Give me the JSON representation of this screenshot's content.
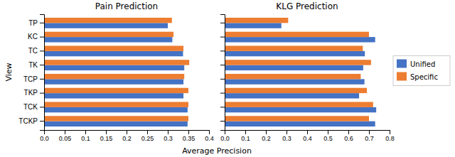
{
  "chart_data": [
    {
      "type": "bar",
      "orientation": "horizontal",
      "title": "Pain Prediction",
      "xlabel": "Average Precision",
      "ylabel": "View",
      "legend": "right",
      "categories": [
        "TP",
        "KC",
        "TC",
        "TK",
        "TCP",
        "TKP",
        "TCK",
        "TCKP"
      ],
      "series": [
        {
          "name": "Unified",
          "color": "#4472C4",
          "values": [
            0.3,
            0.311,
            0.337,
            0.34,
            0.338,
            0.338,
            0.348,
            0.348
          ]
        },
        {
          "name": "Specific",
          "color": "#ED7D31",
          "values": [
            0.31,
            0.314,
            0.338,
            0.352,
            0.34,
            0.35,
            0.35,
            0.35
          ]
        }
      ],
      "xlim": [
        0.0,
        0.4
      ],
      "xticks": [
        {
          "value": 0.0,
          "label": "0.0"
        },
        0.05,
        0.1,
        0.15,
        0.2,
        0.25,
        0.3,
        0.35,
        0.4
      ]
    },
    {
      "type": "bar",
      "orientation": "horizontal",
      "title": "KLG Prediction",
      "tick_labels": "x",
      "categories": [
        "TP",
        "KC",
        "TC",
        "TK",
        "TCP",
        "TKP",
        "TCK",
        "TCKP"
      ],
      "series": [
        {
          "color": "#4472C4",
          "values": [
            0.275,
            0.73,
            0.68,
            0.672,
            0.678,
            0.652,
            0.735,
            0.73
          ]
        },
        {
          "color": "#ED7D31",
          "values": [
            0.308,
            0.7,
            0.67,
            0.71,
            0.66,
            0.69,
            0.72,
            0.7
          ]
        }
      ],
      "xlim": [
        0.0,
        0.8
      ],
      "xticks": [
        {
          "value": 0.0,
          "label": "0.0"
        },
        0.1,
        0.2,
        0.3,
        0.4,
        0.5,
        0.6,
        0.7,
        0.8
      ]
    }
  ]
}
